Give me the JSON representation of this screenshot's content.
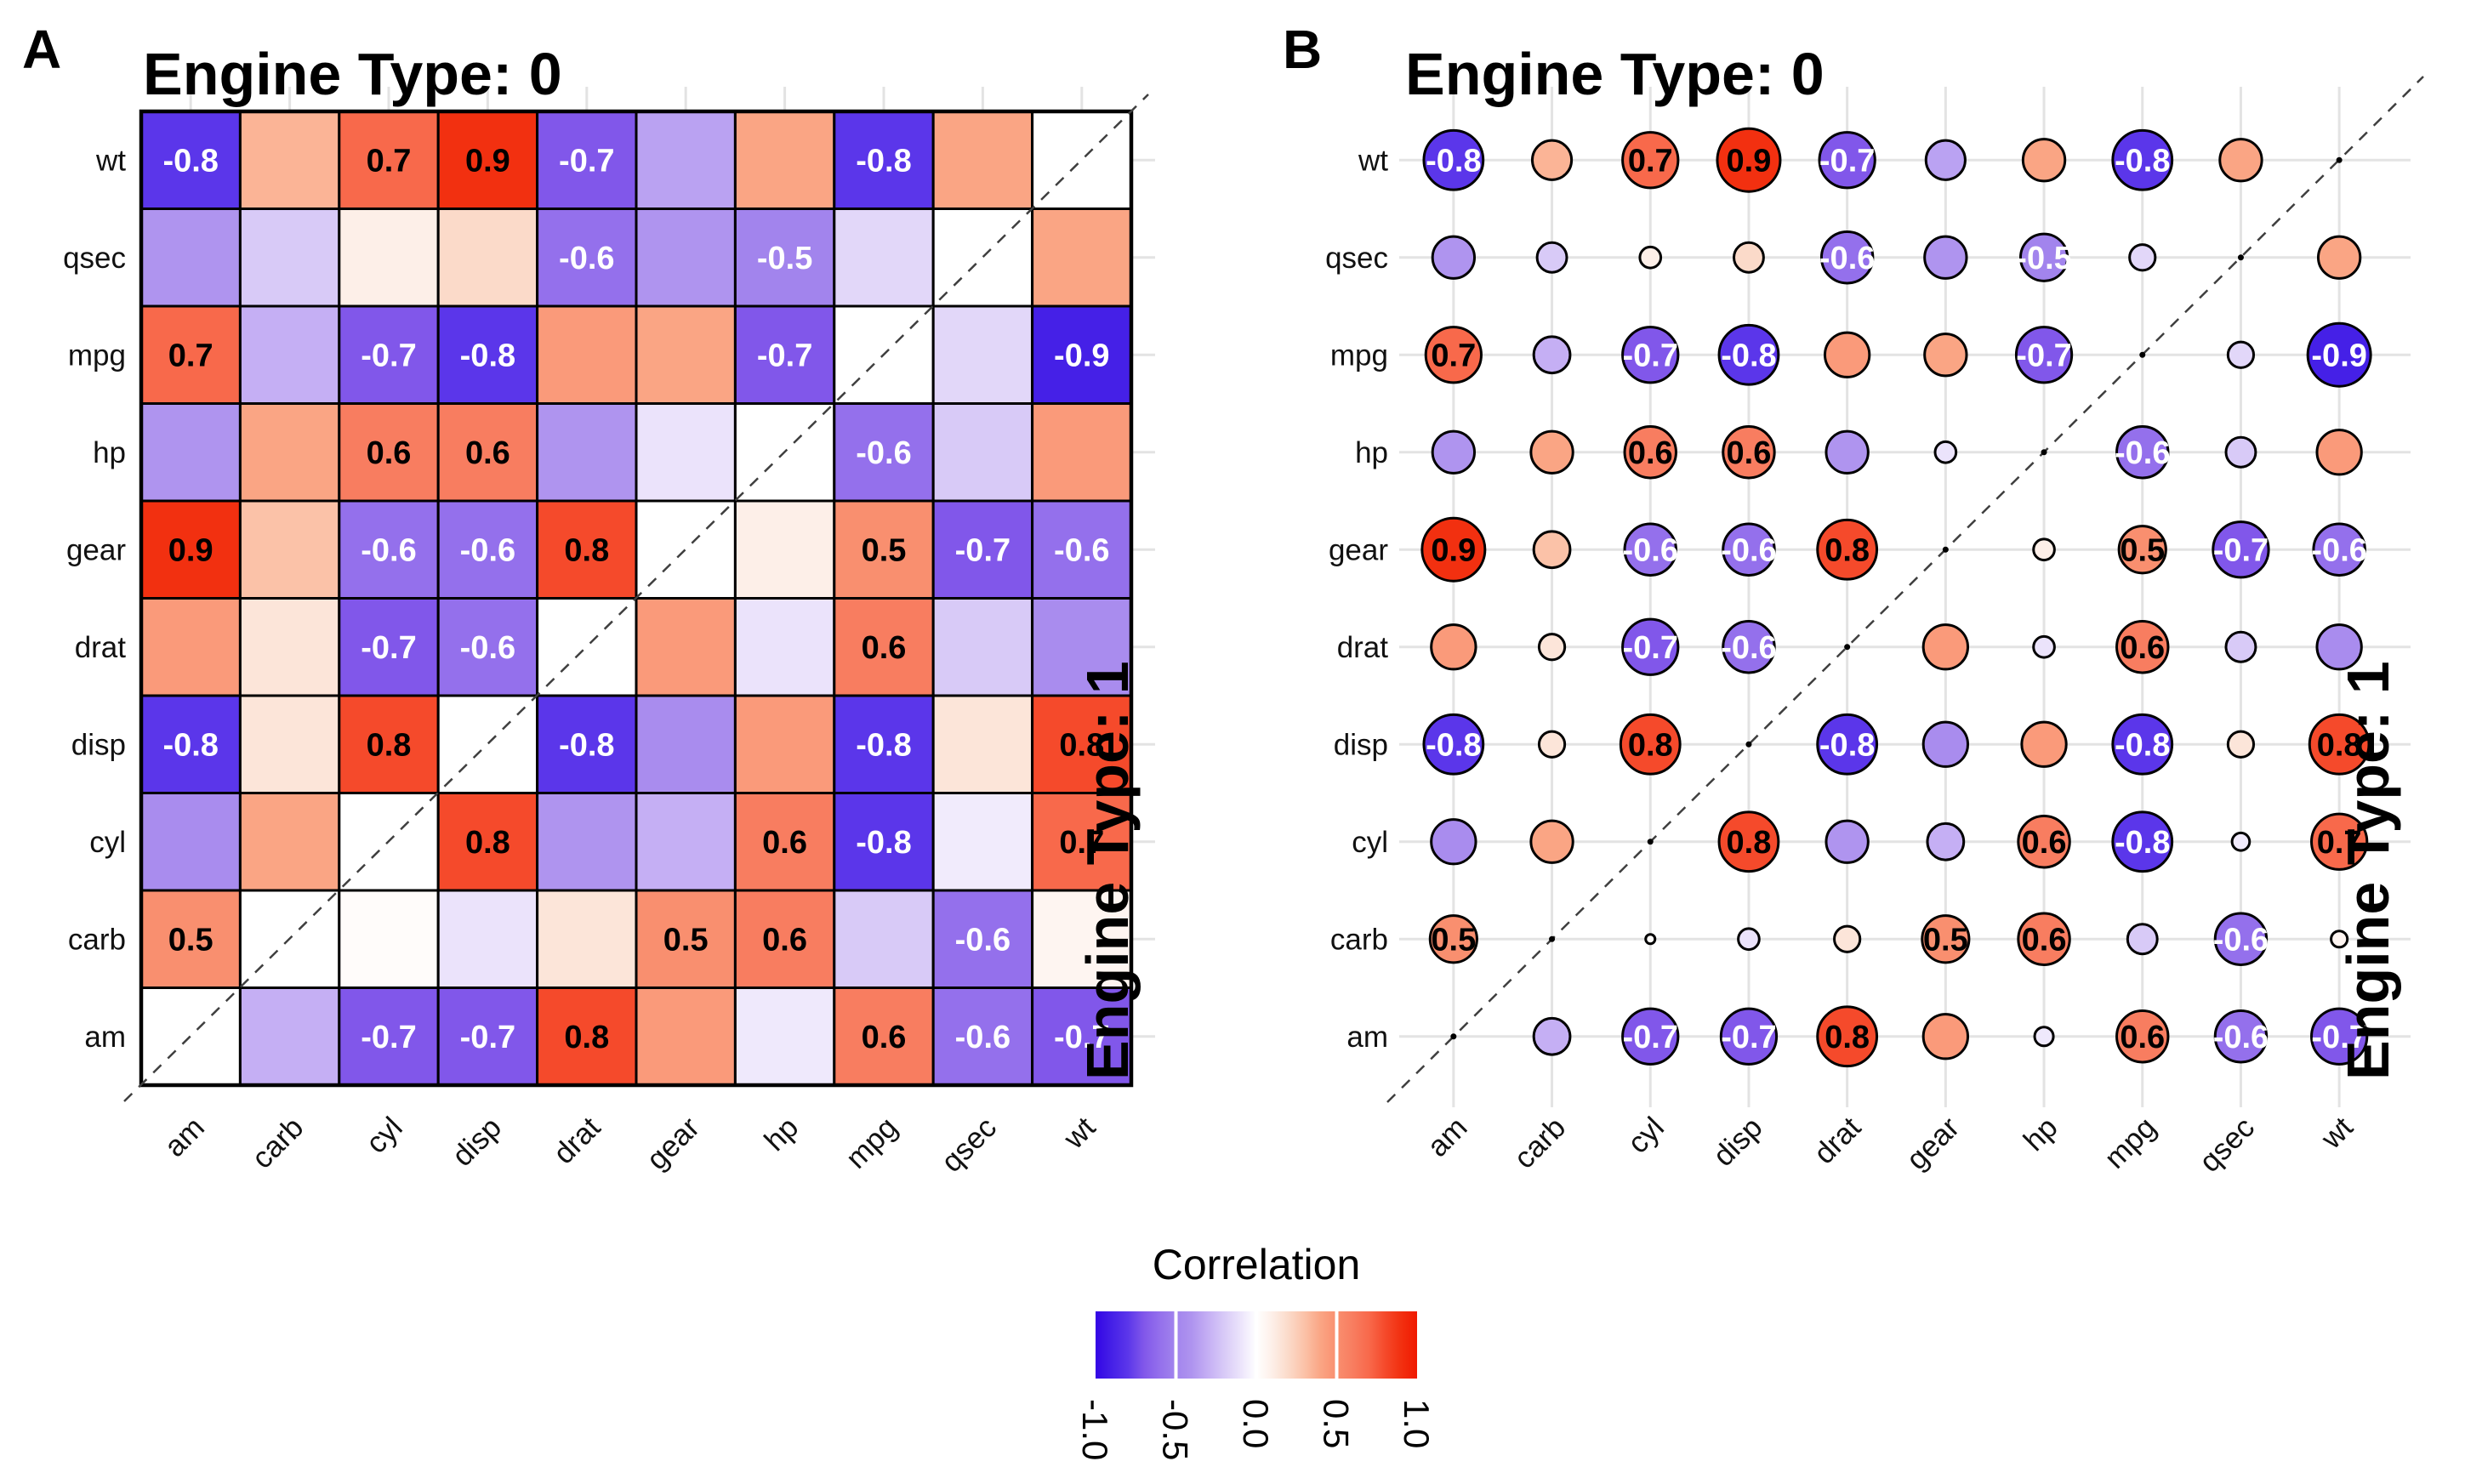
{
  "panels": [
    {
      "tag": "A",
      "top_strip": "Engine Type: 0",
      "right_strip": "Engine Type: 1"
    },
    {
      "tag": "B",
      "top_strip": "Engine Type: 0",
      "right_strip": "Engine Type: 1"
    }
  ],
  "legend": {
    "title": "Correlation",
    "ticks": [
      "-1.0",
      "-0.5",
      "0.0",
      "0.5",
      "1.0"
    ],
    "tick_values": [
      -1,
      -0.5,
      0,
      0.5,
      1
    ],
    "range": [
      -1,
      1
    ]
  },
  "chart_data": [
    {
      "type": "heatmap",
      "panel": "A",
      "title_top": "Engine Type: 0",
      "title_right": "Engine Type: 1",
      "note": "upper triangle = Engine Type 0, lower triangle = Engine Type 1, diagonal blank with dashed identity line",
      "rows": [
        "wt",
        "qsec",
        "mpg",
        "hp",
        "gear",
        "drat",
        "disp",
        "cyl",
        "carb",
        "am"
      ],
      "cols": [
        "am",
        "carb",
        "cyl",
        "disp",
        "drat",
        "gear",
        "hp",
        "mpg",
        "qsec",
        "wt"
      ],
      "values": [
        [
          -0.8,
          0.35,
          0.7,
          0.9,
          -0.7,
          -0.35,
          0.4,
          -0.8,
          0.4,
          null
        ],
        [
          -0.4,
          -0.2,
          0.1,
          0.2,
          -0.6,
          -0.4,
          -0.5,
          -0.15,
          null,
          0.4
        ],
        [
          0.7,
          -0.3,
          -0.7,
          -0.8,
          0.45,
          0.4,
          -0.7,
          null,
          -0.15,
          -0.9
        ],
        [
          -0.4,
          0.4,
          0.6,
          0.6,
          -0.4,
          -0.1,
          null,
          -0.6,
          -0.2,
          0.45
        ],
        [
          0.9,
          0.3,
          -0.6,
          -0.6,
          0.8,
          null,
          0.1,
          0.5,
          -0.7,
          -0.6
        ],
        [
          0.45,
          0.15,
          -0.7,
          -0.6,
          null,
          0.45,
          -0.1,
          0.6,
          -0.2,
          -0.45
        ],
        [
          -0.8,
          0.15,
          0.8,
          null,
          -0.8,
          -0.45,
          0.45,
          -0.8,
          0.15,
          0.8
        ],
        [
          -0.45,
          0.4,
          null,
          0.8,
          -0.4,
          -0.3,
          0.6,
          -0.8,
          -0.07,
          0.7
        ],
        [
          0.5,
          null,
          0.02,
          -0.1,
          0.15,
          0.5,
          0.6,
          -0.2,
          -0.6,
          0.06
        ],
        [
          null,
          -0.3,
          -0.7,
          -0.7,
          0.8,
          0.45,
          -0.08,
          0.6,
          -0.6,
          -0.7
        ]
      ],
      "label_threshold": 0.5,
      "colormap": {
        "negative": [
          "#FFFFFF",
          "#EBE3FB",
          "#D8CAF7",
          "#C5AFF4",
          "#AF94EF",
          "#A284ED",
          "#9470EC",
          "#8157EA",
          "#5B36EA",
          "#4520E7",
          "#3305E5"
        ],
        "positive": [
          "#FFFFFF",
          "#FDEFE8",
          "#FBDAC9",
          "#FBC2A8",
          "#FAA584",
          "#F98F6F",
          "#F87D60",
          "#F8694B",
          "#F54A2B",
          "#F23010",
          "#F01900"
        ]
      },
      "grid_color": "#E3E3E3",
      "cell_border_color": "#000000"
    },
    {
      "type": "scatter",
      "panel": "B",
      "title_top": "Engine Type: 0",
      "title_right": "Engine Type: 1",
      "note": "correlogram bubbles: circle area proportional to |correlation|, color = correlation; values identical to panel A; diagonal shown as small black dots on dashed identity line",
      "rows": [
        "wt",
        "qsec",
        "mpg",
        "hp",
        "gear",
        "drat",
        "disp",
        "cyl",
        "carb",
        "am"
      ],
      "cols": [
        "am",
        "carb",
        "cyl",
        "disp",
        "drat",
        "gear",
        "hp",
        "mpg",
        "qsec",
        "wt"
      ],
      "values_same_as_panel": "A",
      "label_threshold": 0.5
    }
  ]
}
